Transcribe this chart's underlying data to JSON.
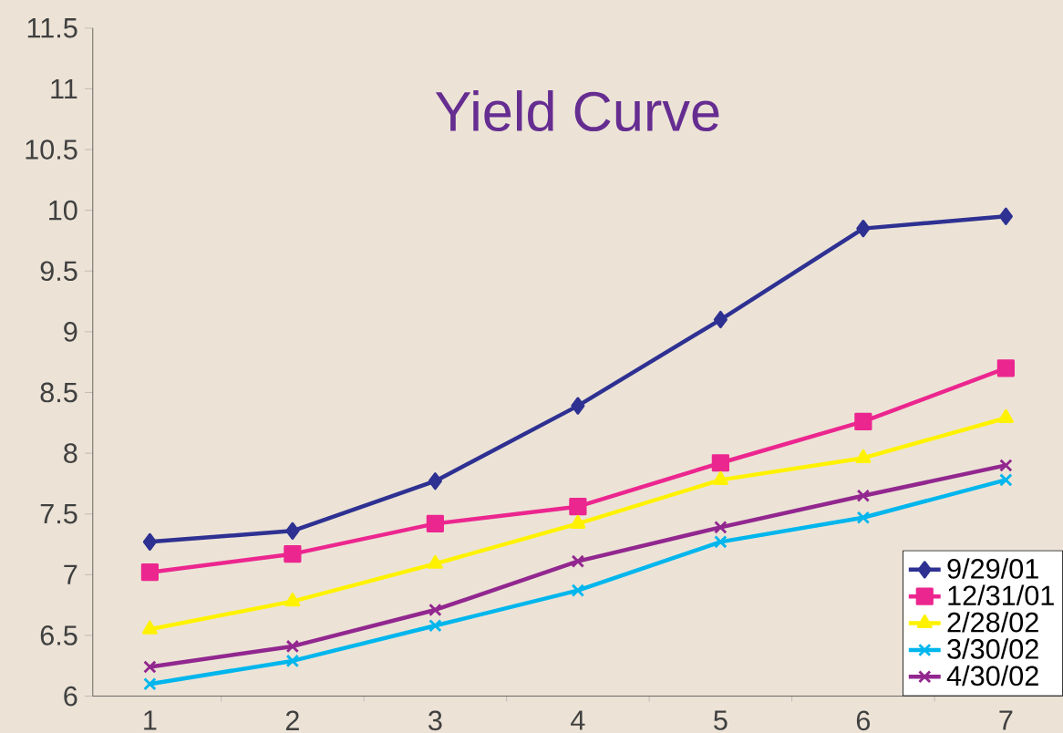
{
  "chart_data": {
    "type": "line",
    "title": "Yield Curve",
    "categories": [
      "1",
      "2",
      "3",
      "4",
      "5",
      "6",
      "7"
    ],
    "series": [
      {
        "name": "9/29/01",
        "color": "#2e3192",
        "marker": "diamond",
        "values": [
          7.27,
          7.36,
          7.77,
          8.39,
          9.1,
          9.85,
          9.95
        ]
      },
      {
        "name": "12/31/01",
        "color": "#ec268f",
        "marker": "square",
        "values": [
          7.02,
          7.17,
          7.42,
          7.56,
          7.92,
          8.26,
          8.7
        ]
      },
      {
        "name": "2/28/02",
        "color": "#fff200",
        "marker": "triangle",
        "values": [
          6.55,
          6.78,
          7.09,
          7.42,
          7.78,
          7.96,
          8.29
        ]
      },
      {
        "name": "3/30/02",
        "color": "#00b6ed",
        "marker": "cross",
        "values": [
          6.1,
          6.29,
          6.58,
          6.87,
          7.27,
          7.47,
          7.78
        ]
      },
      {
        "name": "4/30/02",
        "color": "#92278f",
        "marker": "cross",
        "values": [
          6.24,
          6.41,
          6.71,
          7.11,
          7.39,
          7.65,
          7.9
        ]
      }
    ],
    "ylim": [
      6,
      11.5
    ],
    "yticks": [
      6,
      6.5,
      7,
      7.5,
      8,
      8.5,
      9,
      9.5,
      10,
      10.5,
      11,
      11.5
    ],
    "grid": false,
    "legend": "bottom right"
  }
}
